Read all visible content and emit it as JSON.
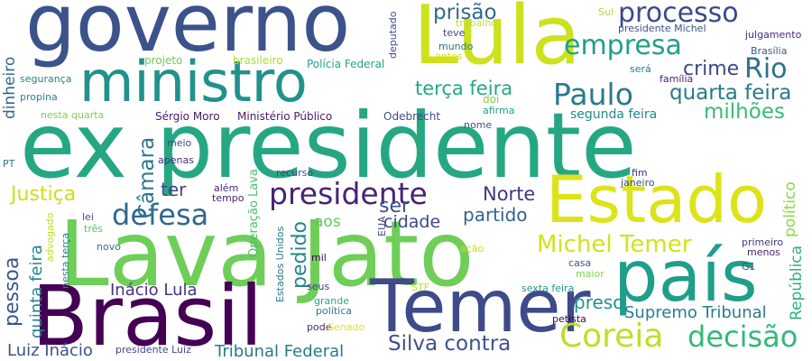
{
  "words": [
    {
      "text": "ex presidente",
      "color": "#26a784"
    },
    {
      "text": "governo",
      "color": "#3b528b"
    },
    {
      "text": "Lula",
      "color": "#cde11d"
    },
    {
      "text": "Lava Jato",
      "color": "#6ece58"
    },
    {
      "text": "Brasil",
      "color": "#440154"
    },
    {
      "text": "ministro",
      "color": "#21918c"
    },
    {
      "text": "país",
      "color": "#1f9e89"
    },
    {
      "text": "Temer",
      "color": "#3e4a89"
    },
    {
      "text": "Estado",
      "color": "#dde318"
    },
    {
      "text": "processo",
      "color": "#3e4989"
    },
    {
      "text": "empresa",
      "color": "#1fa187"
    },
    {
      "text": "Paulo",
      "color": "#2a788e"
    },
    {
      "text": "presidente",
      "color": "#482475"
    },
    {
      "text": "defesa",
      "color": "#31688e"
    },
    {
      "text": "Coreia",
      "color": "#bddf26"
    },
    {
      "text": "decisão",
      "color": "#35b779"
    },
    {
      "text": "Michel Temer",
      "color": "#d2e21b"
    },
    {
      "text": "Silva contra",
      "color": "#3b528b"
    },
    {
      "text": "Rio",
      "color": "#2c728e"
    },
    {
      "text": "quarta feira",
      "color": "#2a788e"
    },
    {
      "text": "crime",
      "color": "#3f4788"
    },
    {
      "text": "milhões",
      "color": "#3aba76"
    },
    {
      "text": "terça feira",
      "color": "#22a884"
    },
    {
      "text": "prisão",
      "color": "#31688e"
    },
    {
      "text": "Norte",
      "color": "#453781"
    },
    {
      "text": "partido",
      "color": "#33638d"
    },
    {
      "text": "cidade",
      "color": "#404688"
    },
    {
      "text": "ser",
      "color": "#3b528b"
    },
    {
      "text": "ter",
      "color": "#414487"
    },
    {
      "text": "aos",
      "color": "#5ec962"
    },
    {
      "text": "Justiça",
      "color": "#c8e020"
    },
    {
      "text": "Inácio Lula",
      "color": "#46337e"
    },
    {
      "text": "Supremo Tribunal",
      "color": "#287d8e"
    },
    {
      "text": "Tribunal Federal",
      "color": "#2a788e"
    },
    {
      "text": "Luiz Inácio",
      "color": "#3b528b"
    },
    {
      "text": "preso",
      "color": "#1f948c"
    },
    {
      "text": "segunda feira",
      "color": "#238a8d"
    },
    {
      "text": "Câmara",
      "color": "#2a788e"
    },
    {
      "text": "pessoa",
      "color": "#39568c"
    },
    {
      "text": "quinta feira",
      "color": "#26828e"
    },
    {
      "text": "dinheiro",
      "color": "#31688e"
    },
    {
      "text": "pedido",
      "color": "#25858e"
    },
    {
      "text": "político",
      "color": "#8fd744"
    },
    {
      "text": "República",
      "color": "#2db27d"
    },
    {
      "text": "Operação Lava",
      "color": "#48c16e"
    },
    {
      "text": "Odebrecht",
      "color": "#3e4c8a"
    },
    {
      "text": "Sérgio Moro",
      "color": "#48186a"
    },
    {
      "text": "Ministério Público",
      "color": "#481c6e"
    },
    {
      "text": "Polícia Federal",
      "color": "#22a785"
    },
    {
      "text": "brasileiro",
      "color": "#addc30"
    },
    {
      "text": "projeto",
      "color": "#6ccd5a"
    },
    {
      "text": "segurança",
      "color": "#26828e"
    },
    {
      "text": "propina",
      "color": "#24868e"
    },
    {
      "text": "nesta quarta",
      "color": "#7ad151"
    },
    {
      "text": "trabalho",
      "color": "#c0df25"
    },
    {
      "text": "teve",
      "color": "#3e4989"
    },
    {
      "text": "mundo",
      "color": "#2c728e"
    },
    {
      "text": "antes",
      "color": "#d5e21a"
    },
    {
      "text": "deputado",
      "color": "#3d4d8a"
    },
    {
      "text": "Sul",
      "color": "#b5de2b"
    },
    {
      "text": "presidente Michel",
      "color": "#3b528b"
    },
    {
      "text": "julgamento",
      "color": "#472a7a"
    },
    {
      "text": "Brasília",
      "color": "#38598c"
    },
    {
      "text": "será",
      "color": "#2a788e"
    },
    {
      "text": "família",
      "color": "#482173"
    },
    {
      "text": "doi",
      "color": "#7fd34e"
    },
    {
      "text": "afirma",
      "color": "#1fa187"
    },
    {
      "text": "nome",
      "color": "#3b528b"
    },
    {
      "text": "meio",
      "color": "#3f4889"
    },
    {
      "text": "apenas",
      "color": "#472d7b"
    },
    {
      "text": "recurso",
      "color": "#404588"
    },
    {
      "text": "além",
      "color": "#482878"
    },
    {
      "text": "tempo",
      "color": "#482475"
    },
    {
      "text": "lei",
      "color": "#3c4f8a"
    },
    {
      "text": "três",
      "color": "#50c46a"
    },
    {
      "text": "advogado",
      "color": "#b8de29"
    },
    {
      "text": "novo",
      "color": "#2c728e"
    },
    {
      "text": "nesta terça",
      "color": "#26828e"
    },
    {
      "text": "Estados Unidos",
      "color": "#2a788e"
    },
    {
      "text": "EUA",
      "color": "#3e4989"
    },
    {
      "text": "mil",
      "color": "#440154"
    },
    {
      "text": "ação",
      "color": "#c2df23"
    },
    {
      "text": "casa",
      "color": "#39568c"
    },
    {
      "text": "maior",
      "color": "#84d44b"
    },
    {
      "text": "primeiro",
      "color": "#453882"
    },
    {
      "text": "menos",
      "color": "#481f70"
    },
    {
      "text": "G1",
      "color": "#3b528b"
    },
    {
      "text": "fim",
      "color": "#472c7a"
    },
    {
      "text": "janeiro",
      "color": "#3f4788"
    },
    {
      "text": "seus",
      "color": "#433e85"
    },
    {
      "text": "grande",
      "color": "#22a884"
    },
    {
      "text": "política",
      "color": "#2a788e"
    },
    {
      "text": "pode",
      "color": "#482878"
    },
    {
      "text": "Senado",
      "color": "#dfe318"
    },
    {
      "text": "STF",
      "color": "#bade28"
    },
    {
      "text": "sexta feira",
      "color": "#1f9a8a"
    },
    {
      "text": "petista",
      "color": "#440154"
    },
    {
      "text": "presidente Luiz",
      "color": "#3e4a89"
    },
    {
      "text": "PT",
      "color": "#2a788e"
    }
  ]
}
